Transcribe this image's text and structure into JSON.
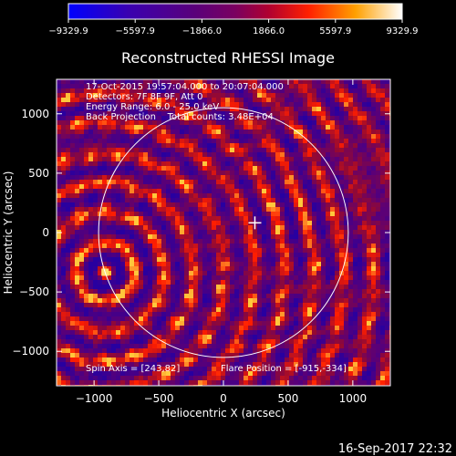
{
  "chart_data": {
    "type": "heatmap",
    "title": "Reconstructed RHESSI Image",
    "xlabel": "Heliocentric X (arcsec)",
    "ylabel": "Heliocentric Y (arcsec)",
    "xlim": [
      -1290,
      1290
    ],
    "ylim": [
      -1290,
      1290
    ],
    "xticks": [
      -1000,
      -500,
      0,
      500,
      1000
    ],
    "xtick_labels": [
      "−1000",
      "−500",
      "0",
      "500",
      "1000"
    ],
    "yticks": [
      -1000,
      -500,
      0,
      500,
      1000
    ],
    "ytick_labels": [
      "−1000",
      "−500",
      "0",
      "500",
      "1000"
    ],
    "colorbar": {
      "range": [
        -9329.9,
        9329.9
      ],
      "ticks": [
        -9329.9,
        -5597.9,
        -1866.0,
        1866.0,
        5597.9,
        9329.9
      ],
      "tick_labels": [
        "−9329.9",
        "−5597.9",
        "−1866.0",
        "1866.0",
        "5597.9",
        "9329.9"
      ],
      "colors": [
        "#0000ff",
        "#5a007a",
        "#a0002a",
        "#ff0000",
        "#ffb000",
        "#ffffff"
      ]
    },
    "annotations": [
      "17-Oct-2015 19:57:04.000 to 20:07:04.000",
      "Detectors: 7F 8F 9F, Att 0",
      "Energy Range: 6.0 - 25.0 keV",
      "Back Projection    Total counts: 3.48E+04"
    ],
    "solar_limb_radius_arcsec": 965,
    "marker": {
      "x": 243,
      "y": 82
    },
    "hotspot": {
      "x": -915,
      "y": -334
    },
    "spin_axis_label": "Spin Axis = [243,82]",
    "flare_position_label": "Flare Position = [-915,-334]"
  },
  "footer_date": "16-Sep-2017 22:32"
}
